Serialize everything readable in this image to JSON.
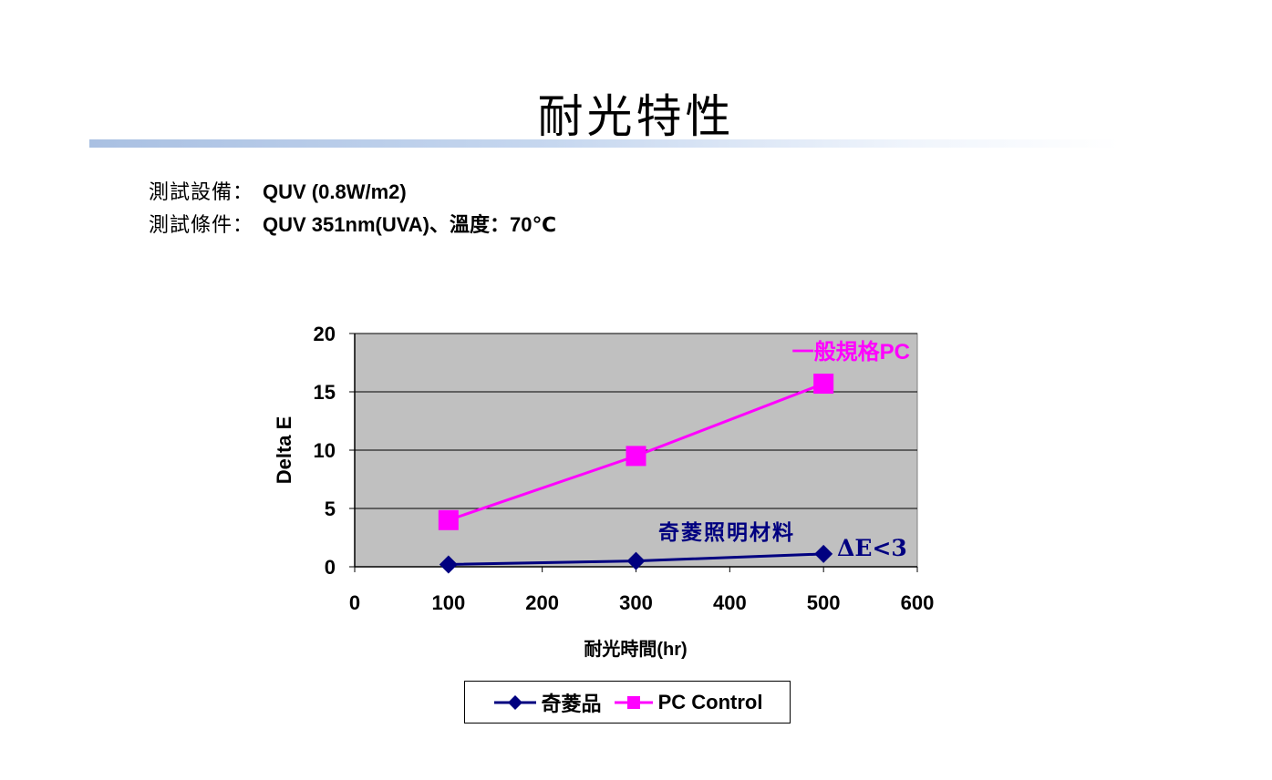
{
  "title": "耐光特性",
  "spec": {
    "equipment_label": "測試設備：",
    "equipment_value": "QUV (0.8W/m2)",
    "condition_label": "測試條件：",
    "condition_value": "QUV 351nm(UVA)、溫度：70℃"
  },
  "chart_data": {
    "type": "line",
    "xlabel": "耐光時間(hr)",
    "ylabel": "Delta E",
    "xlim": [
      0,
      600
    ],
    "ylim": [
      0,
      20
    ],
    "xticks": [
      0,
      100,
      200,
      300,
      400,
      500,
      600
    ],
    "yticks": [
      0,
      5,
      10,
      15,
      20
    ],
    "grid": "horizontal",
    "plot_background": "#c0c0c0",
    "legend_position": "bottom",
    "series": [
      {
        "name": "奇菱品",
        "x": [
          100,
          300,
          500
        ],
        "y": [
          0.2,
          0.5,
          1.1
        ],
        "color": "#000080",
        "marker": "diamond"
      },
      {
        "name": "PC Control",
        "x": [
          100,
          300,
          500
        ],
        "y": [
          4.0,
          9.5,
          15.7
        ],
        "color": "#ff00ff",
        "marker": "square"
      }
    ],
    "annotations": [
      {
        "text": "一般規格PC",
        "color": "#ff00ff"
      },
      {
        "text": "奇菱照明材料",
        "color": "#000080"
      },
      {
        "text": "ΔE<3",
        "color": "#000080"
      }
    ]
  }
}
